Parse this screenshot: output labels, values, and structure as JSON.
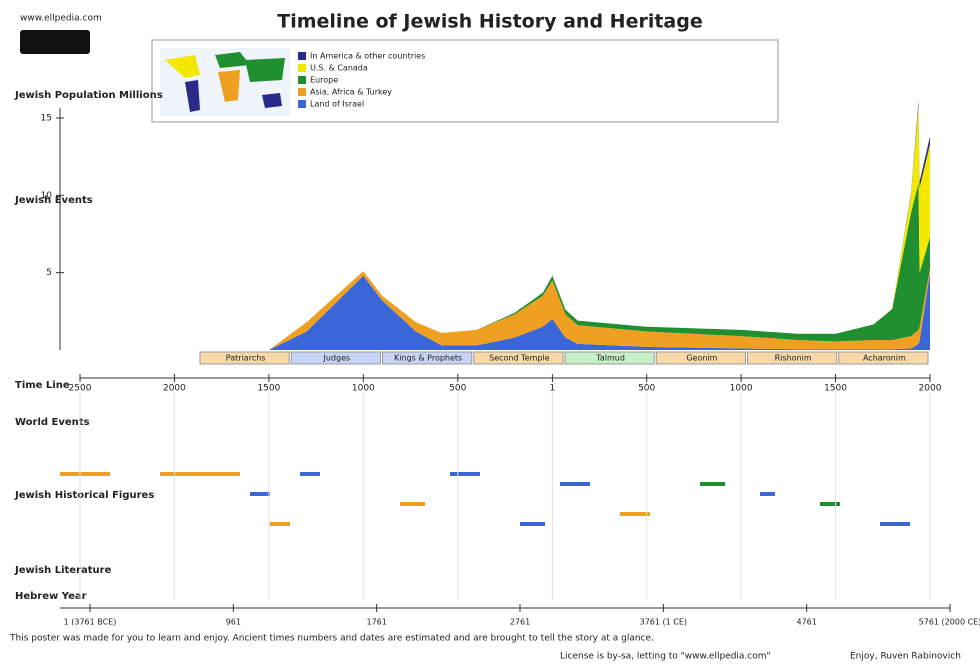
{
  "site": "www.ellpedia.com",
  "chart_data": {
    "type": "area",
    "stacked": true,
    "title": "Timeline of Jewish History and Heritage",
    "y_label": "Jewish Population Millions",
    "x_label": "Time Line",
    "x": [
      -2000,
      -1500,
      -1300,
      -1000,
      -900,
      -722,
      -586,
      -400,
      -200,
      -50,
      1,
      70,
      135,
      500,
      1000,
      1300,
      1500,
      1700,
      1800,
      1900,
      1939,
      1945,
      2000
    ],
    "series": [
      {
        "name": "Land of Israel",
        "color": "#3a66d8",
        "values": [
          0,
          0,
          1.2,
          4.8,
          3.2,
          1.2,
          0.3,
          0.3,
          0.8,
          1.5,
          2,
          0.8,
          0.4,
          0.2,
          0.1,
          0.05,
          0.05,
          0.05,
          0.05,
          0.1,
          0.4,
          0.6,
          5
        ]
      },
      {
        "name": "Asia, Africa & Turkey",
        "color": "#f0a020",
        "values": [
          0,
          0,
          0.6,
          0.3,
          0.3,
          0.6,
          0.8,
          1,
          1.5,
          2,
          2.5,
          1.5,
          1.2,
          1,
          0.8,
          0.6,
          0.5,
          0.6,
          0.6,
          0.8,
          0.9,
          0.9,
          0.3
        ]
      },
      {
        "name": "Europe",
        "color": "#1f8f2f",
        "values": [
          0,
          0,
          0,
          0,
          0,
          0,
          0,
          0,
          0.1,
          0.2,
          0.3,
          0.3,
          0.3,
          0.3,
          0.4,
          0.4,
          0.5,
          1,
          2,
          8,
          9.5,
          3.5,
          2
        ]
      },
      {
        "name": "U.S. & Canada",
        "color": "#f5e800",
        "values": [
          0,
          0,
          0,
          0,
          0,
          0,
          0,
          0,
          0,
          0,
          0,
          0,
          0,
          0,
          0,
          0,
          0,
          0,
          0.01,
          1.2,
          5,
          5.5,
          6
        ]
      },
      {
        "name": "In America & other countries",
        "color": "#2a2a8a",
        "values": [
          0,
          0,
          0,
          0,
          0,
          0,
          0,
          0,
          0,
          0,
          0,
          0,
          0,
          0,
          0,
          0,
          0,
          0,
          0,
          0.1,
          0.3,
          0.4,
          0.5
        ]
      }
    ],
    "xlim": [
      -2500,
      2000
    ],
    "ylim": [
      0,
      15
    ],
    "xticks": [
      {
        "value": -2500,
        "label": "2500"
      },
      {
        "value": -2000,
        "label": "2000"
      },
      {
        "value": -1500,
        "label": "1500"
      },
      {
        "value": -1000,
        "label": "1000"
      },
      {
        "value": -500,
        "label": "500"
      },
      1,
      500,
      1000,
      1500,
      2000
    ],
    "yticks": [
      5,
      10,
      15
    ]
  },
  "periods": [
    "Patriarchs",
    "Judges",
    "Kings & Prophets",
    "Second Temple",
    "Talmud",
    "Geonim",
    "Rishonim",
    "Acharonim"
  ],
  "sections": [
    "Jewish Events",
    "World Events",
    "Jewish Historical Figures",
    "Jewish Literature",
    "Hebrew Year"
  ],
  "hebrew_years": [
    "1 (3761 BCE)",
    "961",
    "1761",
    "2761",
    "3761 (1 CE)",
    "4761",
    "5761 (2000 CE)"
  ],
  "footer": {
    "note": "This poster was made for you to learn and enjoy. Ancient times numbers and dates are estimated and are brought to tell the story at a glance.",
    "license": "License is by-sa, letting to \"www.ellpedia.com\"",
    "author": "Enjoy, Ruven Rabinovich"
  }
}
